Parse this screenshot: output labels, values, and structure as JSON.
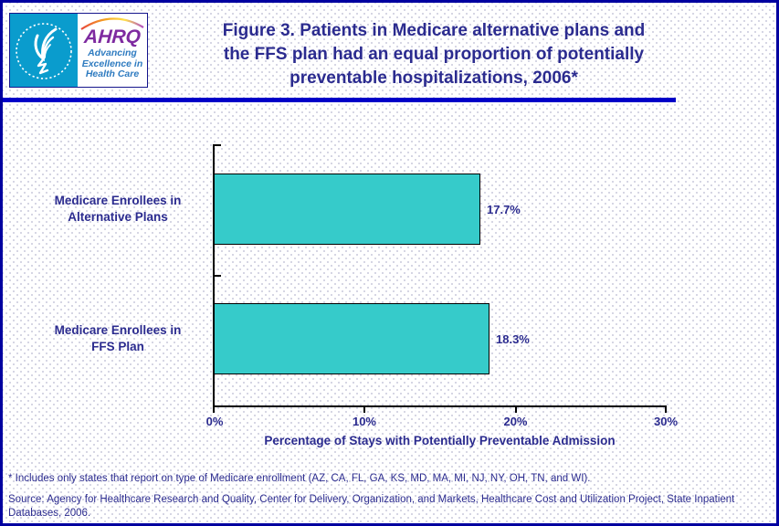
{
  "header": {
    "title_lines": [
      "Figure 3. Patients in Medicare alternative plans and",
      "the FFS plan had an equal proportion of potentially",
      "preventable hospitalizations, 2006*"
    ],
    "logo": {
      "acronym": "AHRQ",
      "tagline_lines": [
        "Advancing",
        "Excellence in",
        "Health Care"
      ]
    }
  },
  "chart_data": {
    "type": "bar",
    "orientation": "horizontal",
    "categories": [
      "Medicare Enrollees in Alternative Plans",
      "Medicare Enrollees in FFS Plan"
    ],
    "category_label_lines": [
      [
        "Medicare Enrollees in",
        "Alternative Plans"
      ],
      [
        "Medicare Enrollees in",
        "FFS Plan"
      ]
    ],
    "values": [
      17.7,
      18.3
    ],
    "value_labels": [
      "17.7%",
      "18.3%"
    ],
    "x_ticks": [
      "0%",
      "10%",
      "20%",
      "30%"
    ],
    "xlim": [
      0,
      30
    ],
    "xlabel": "Percentage of Stays with Potentially Preventable Admission",
    "grid": false,
    "legend": "none",
    "bar_color": "#36cbca",
    "text_color": "#2b2b8f"
  },
  "footnotes": {
    "note": "* Includes only states that report on type of Medicare enrollment (AZ, CA, FL, GA, KS, MD, MA, MI, NJ, NY, OH, TN, and WI).",
    "source_lines": [
      "Source: Agency for Healthcare Research and Quality, Center for Delivery, Organization, and Markets, Healthcare Cost and Utilization Project, State Inpatient",
      "Databases, 2006."
    ]
  }
}
